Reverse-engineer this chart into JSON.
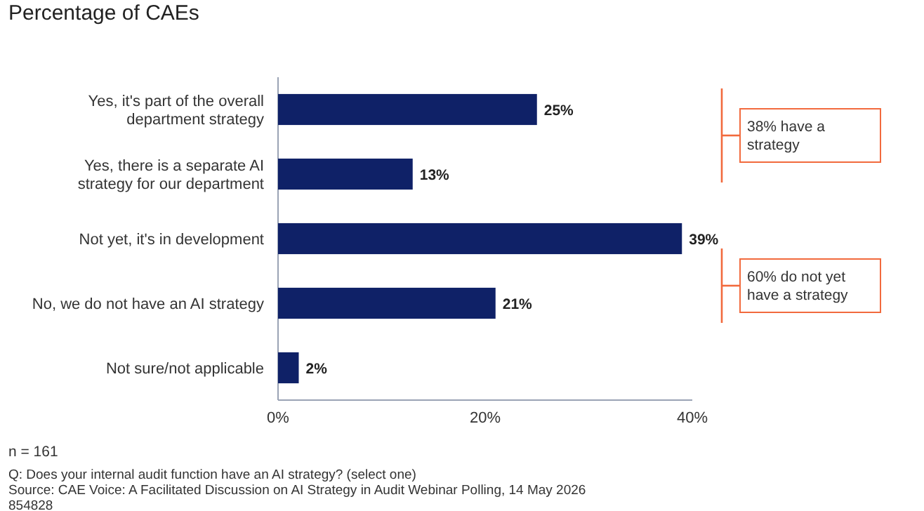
{
  "chart_data": {
    "type": "bar",
    "orientation": "horizontal",
    "title": "Percentage of CAEs",
    "categories": [
      "Yes, it's part of the overall department strategy",
      "Yes, there is a separate AI strategy for our department",
      "Not yet, it's in development",
      "No, we do not have an AI strategy",
      "Not sure/not applicable"
    ],
    "values": [
      25,
      13,
      39,
      21,
      2
    ],
    "color": "#0f2167",
    "value_labels": [
      "25%",
      "13%",
      "39%",
      "21%",
      "2%"
    ],
    "xlim": [
      0,
      40
    ],
    "xticks": [
      {
        "value": 0,
        "label": "0%"
      },
      {
        "value": 20,
        "label": "20%"
      },
      {
        "value": 40,
        "label": "40%"
      }
    ],
    "grid": false,
    "annotations": [
      "38% have a strategy",
      "60% do not yet have a strategy",
      "n = 161",
      "Q: Does your internal audit function have an AI strategy? (select one)",
      "Source: CAE Voice: A Facilitated Discussion on AI Strategy in Audit Webinar Polling, 14 May 2026",
      "854828"
    ]
  }
}
